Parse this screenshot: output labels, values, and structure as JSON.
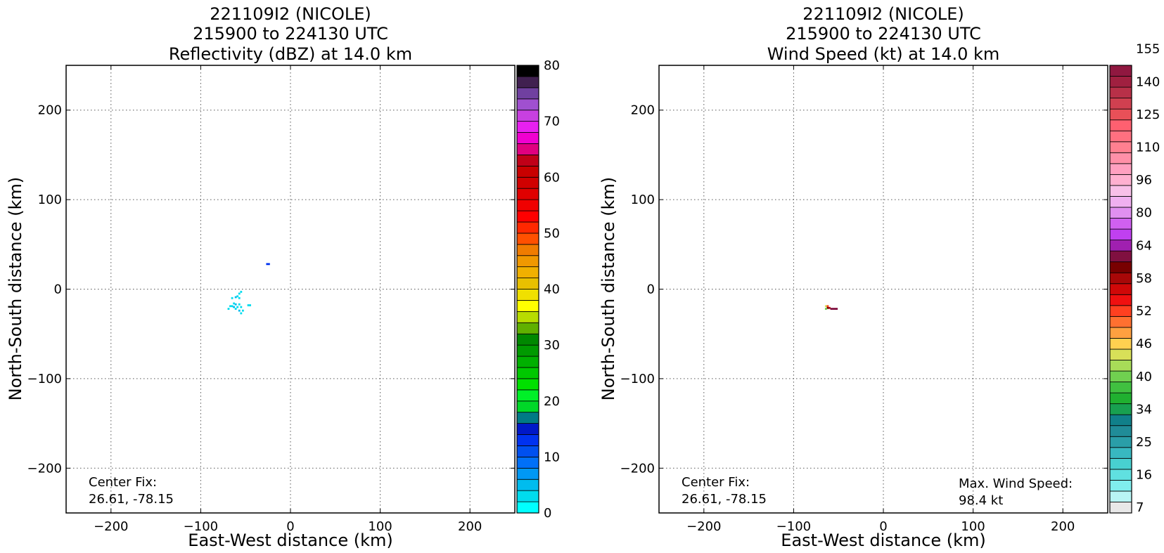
{
  "chart_data": [
    {
      "type": "heatmap",
      "title": [
        "221109I2 (NICOLE)",
        "215900 to 224130 UTC",
        "Reflectivity (dBZ) at 14.0 km"
      ],
      "xlabel": "East-West distance (km)",
      "ylabel": "North-South distance (km)",
      "xlim": [
        -250,
        250
      ],
      "ylim": [
        -250,
        250
      ],
      "xticks": [
        -200,
        -100,
        0,
        100,
        200
      ],
      "yticks": [
        -200,
        -100,
        0,
        100,
        200
      ],
      "xtick_labels": [
        "−200",
        "−100",
        "0",
        "100",
        "200"
      ],
      "ytick_labels": [
        "−200",
        "−100",
        "0",
        "100",
        "200"
      ],
      "grid": true,
      "annotations": [
        "Center Fix:",
        "26.61, -78.15"
      ],
      "colorbar": {
        "label": "",
        "min": 0,
        "max": 80,
        "tick_values": [
          0,
          10,
          20,
          30,
          40,
          50,
          60,
          70,
          80
        ],
        "tick_labels": [
          "0",
          "10",
          "20",
          "30",
          "40",
          "50",
          "60",
          "70",
          "80"
        ],
        "colors": [
          "#00ffff",
          "#00dcee",
          "#00bcee",
          "#0098f4",
          "#0070f8",
          "#0050f0",
          "#0032f0",
          "#0018c8",
          "#007a86",
          "#00d828",
          "#00f028",
          "#00e000",
          "#00c800",
          "#00b000",
          "#009a00",
          "#008800",
          "#60b000",
          "#b8dc00",
          "#ffff00",
          "#f0e000",
          "#e8c000",
          "#f0b000",
          "#f09800",
          "#f07c00",
          "#ff5000",
          "#ff2800",
          "#ff0000",
          "#f00000",
          "#e00000",
          "#d00000",
          "#c80000",
          "#c00018",
          "#e00080",
          "#f000d0",
          "#e820f0",
          "#c840e0",
          "#a050d0",
          "#7040a0",
          "#402050",
          "#000000"
        ]
      },
      "cells": [
        {
          "x": -24,
          "y": 28,
          "value": 12
        },
        {
          "x": -26,
          "y": 28,
          "value": 12
        },
        {
          "x": -55,
          "y": -3,
          "value": 3
        },
        {
          "x": -57,
          "y": -5,
          "value": 3
        },
        {
          "x": -59,
          "y": -8,
          "value": 3
        },
        {
          "x": -61,
          "y": -9,
          "value": 4
        },
        {
          "x": -57,
          "y": -10,
          "value": 3
        },
        {
          "x": -65,
          "y": -10,
          "value": 3
        },
        {
          "x": -63,
          "y": -16,
          "value": 3
        },
        {
          "x": -61,
          "y": -17,
          "value": 4
        },
        {
          "x": -57,
          "y": -17,
          "value": 3
        },
        {
          "x": -67,
          "y": -19,
          "value": 3
        },
        {
          "x": -65,
          "y": -19,
          "value": 3
        },
        {
          "x": -63,
          "y": -20,
          "value": 4
        },
        {
          "x": -59,
          "y": -20,
          "value": 3
        },
        {
          "x": -55,
          "y": -20,
          "value": 3
        },
        {
          "x": -69,
          "y": -22,
          "value": 3
        },
        {
          "x": -61,
          "y": -22,
          "value": 3
        },
        {
          "x": -57,
          "y": -24,
          "value": 4
        },
        {
          "x": -53,
          "y": -24,
          "value": 3
        },
        {
          "x": -55,
          "y": -27,
          "value": 3
        },
        {
          "x": -47,
          "y": -18,
          "value": 3
        },
        {
          "x": -45,
          "y": -18,
          "value": 3
        }
      ]
    },
    {
      "type": "heatmap",
      "title": [
        "221109I2 (NICOLE)",
        "215900 to 224130 UTC",
        "Wind Speed (kt) at 14.0 km"
      ],
      "xlabel": "East-West distance (km)",
      "ylabel": "North-South distance (km)",
      "xlim": [
        -250,
        250
      ],
      "ylim": [
        -250,
        250
      ],
      "xticks": [
        -200,
        -100,
        0,
        100,
        200
      ],
      "yticks": [
        -200,
        -100,
        0,
        100,
        200
      ],
      "xtick_labels": [
        "−200",
        "−100",
        "0",
        "100",
        "200"
      ],
      "ytick_labels": [
        "−200",
        "−100",
        "0",
        "100",
        "200"
      ],
      "grid": true,
      "annotations": [
        "Center Fix:",
        "26.61, -78.15"
      ],
      "max_wind_label": [
        "Max. Wind Speed:",
        "98.4 kt"
      ],
      "colorbar": {
        "label": "",
        "tick_labels": [
          "7",
          "16",
          "25",
          "34",
          "40",
          "46",
          "52",
          "58",
          "64",
          "80",
          "96",
          "110",
          "125",
          "140",
          "155"
        ],
        "tick_bins": [
          0,
          3,
          6,
          9,
          12,
          15,
          18,
          21,
          24,
          27,
          30,
          33,
          36,
          39,
          42
        ],
        "colors": [
          "#e8e8e8",
          "#b8f4f4",
          "#80eeee",
          "#60e0e0",
          "#48d0d0",
          "#38b8c0",
          "#2a9ea8",
          "#208c98",
          "#10808a",
          "#18a050",
          "#20b030",
          "#40c040",
          "#70d050",
          "#a8dc58",
          "#d8e058",
          "#ffd050",
          "#ffa040",
          "#ff7030",
          "#ff4020",
          "#f01010",
          "#d00808",
          "#a80808",
          "#780000",
          "#801040",
          "#a020b0",
          "#c040f0",
          "#d060f0",
          "#e090f0",
          "#f0b0f0",
          "#f8c0e8",
          "#ffb0d0",
          "#ffa0c0",
          "#ff90a8",
          "#ff8090",
          "#ff7080",
          "#ff6070",
          "#e85058",
          "#d04050",
          "#b83048",
          "#a02040",
          "#901840"
        ]
      },
      "cells": [
        {
          "x": -64,
          "y": -19,
          "value": 44
        },
        {
          "x": -62,
          "y": -19,
          "value": 52
        },
        {
          "x": -62,
          "y": -21,
          "value": 60
        },
        {
          "x": -60,
          "y": -21,
          "value": 58
        },
        {
          "x": -58,
          "y": -22,
          "value": 62
        },
        {
          "x": -56,
          "y": -22,
          "value": 62
        },
        {
          "x": -54,
          "y": -22,
          "value": 62
        },
        {
          "x": -52,
          "y": -22,
          "value": 62
        },
        {
          "x": -64,
          "y": -22,
          "value": 40
        }
      ]
    }
  ]
}
